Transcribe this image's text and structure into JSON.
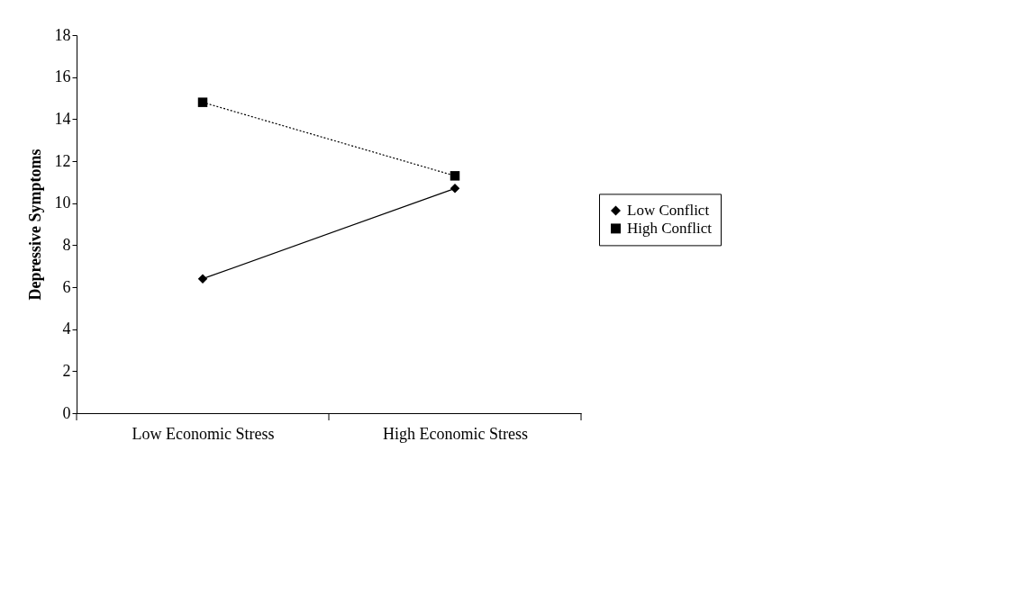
{
  "chart_data": {
    "type": "line",
    "ylabel": "Depressive Symptoms",
    "categories": [
      "Low Economic Stress",
      "High Economic Stress"
    ],
    "series": [
      {
        "name": "Low Conflict",
        "color": "#000000",
        "values": [
          6.4,
          10.7
        ],
        "marker": "diamond",
        "line_style": "solid"
      },
      {
        "name": "High Conflict",
        "color": "#000000",
        "values": [
          14.8,
          11.3
        ],
        "marker": "square",
        "line_style": "dotted"
      }
    ],
    "ylim": [
      0,
      18
    ],
    "yticks": [
      0,
      2,
      4,
      6,
      8,
      10,
      12,
      14,
      16,
      18
    ],
    "grid": false,
    "legend": "right"
  }
}
